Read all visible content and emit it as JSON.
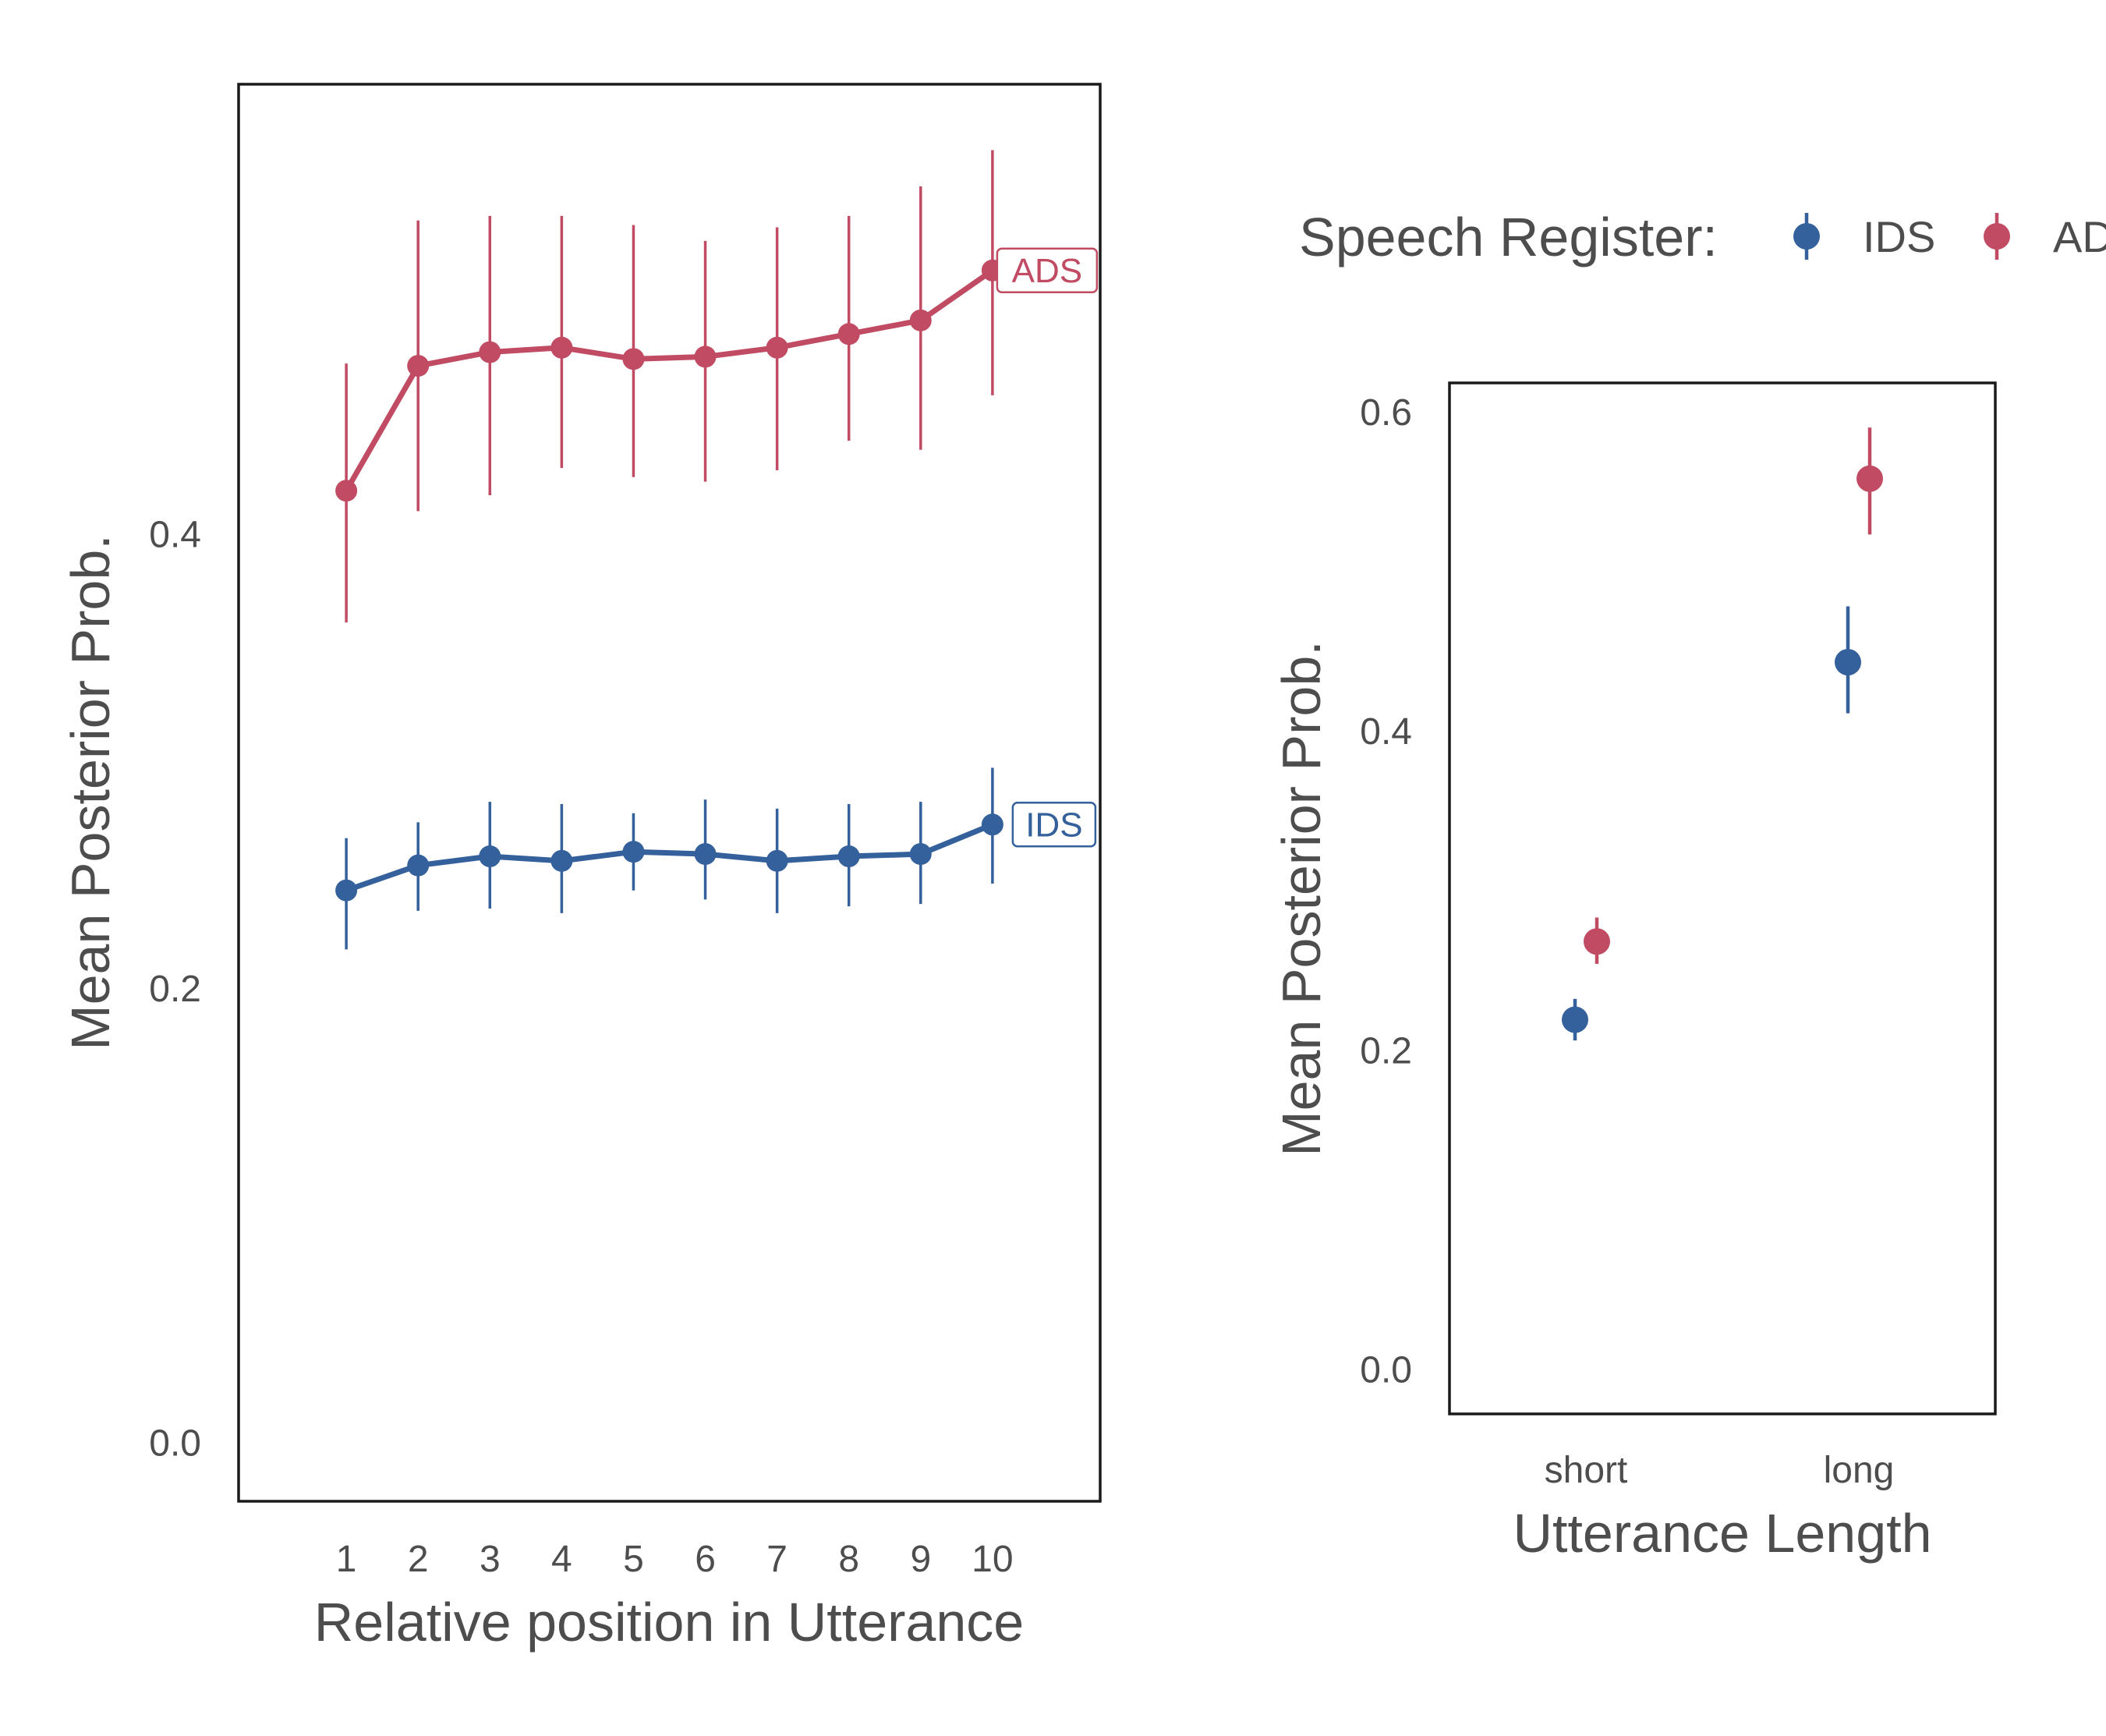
{
  "colors": {
    "IDS": "#34609b",
    "ADS": "#c04b63"
  },
  "legend": {
    "title": "Speech Register:",
    "items": [
      {
        "name": "IDS",
        "label": "IDS",
        "color": "#34609b"
      },
      {
        "name": "ADS",
        "label": "ADS",
        "color": "#c04b63"
      }
    ]
  },
  "chart_data": [
    {
      "type": "line",
      "xlabel": "Relative position in Utterance",
      "ylabel": "Mean Posterior Prob.",
      "xlim": [
        -0.5,
        11.5
      ],
      "ylim": [
        -0.026,
        0.598
      ],
      "x_ticks": [
        1,
        2,
        3,
        4,
        5,
        6,
        7,
        8,
        9,
        10
      ],
      "y_ticks": [
        {
          "value": 0.0,
          "label": "0.0"
        },
        {
          "value": 0.2,
          "label": "0.2"
        },
        {
          "value": 0.4,
          "label": "0.4"
        }
      ],
      "x": [
        1,
        2,
        3,
        4,
        5,
        6,
        7,
        8,
        9,
        10
      ],
      "series": [
        {
          "name": "ADS",
          "label": "ADS",
          "color": "#c04b63",
          "values": [
            0.419,
            0.474,
            0.48,
            0.482,
            0.477,
            0.478,
            0.482,
            0.488,
            0.494,
            0.516
          ],
          "lower": [
            0.361,
            0.41,
            0.417,
            0.429,
            0.425,
            0.423,
            0.428,
            0.441,
            0.437,
            0.461
          ],
          "upper": [
            0.475,
            0.538,
            0.54,
            0.54,
            0.536,
            0.529,
            0.535,
            0.54,
            0.553,
            0.569
          ]
        },
        {
          "name": "IDS",
          "label": "IDS",
          "color": "#34609b",
          "values": [
            0.243,
            0.254,
            0.258,
            0.256,
            0.26,
            0.259,
            0.256,
            0.258,
            0.259,
            0.272
          ],
          "lower": [
            0.217,
            0.234,
            0.235,
            0.233,
            0.243,
            0.239,
            0.233,
            0.236,
            0.237,
            0.246
          ],
          "upper": [
            0.266,
            0.273,
            0.282,
            0.281,
            0.277,
            0.283,
            0.279,
            0.281,
            0.282,
            0.297
          ]
        }
      ]
    },
    {
      "type": "scatter",
      "xlabel": "Utterance Length",
      "ylabel": "Mean Posterior Prob.",
      "categories": [
        "short",
        "long"
      ],
      "xlim": [
        -0.5,
        1.5
      ],
      "ylim": [
        -0.028,
        0.618
      ],
      "y_ticks": [
        {
          "value": 0.0,
          "label": "0.0"
        },
        {
          "value": 0.2,
          "label": "0.2"
        },
        {
          "value": 0.4,
          "label": "0.4"
        },
        {
          "value": 0.6,
          "label": "0.6"
        }
      ],
      "series": [
        {
          "name": "IDS",
          "color": "#34609b",
          "values": [
            0.219,
            0.443
          ],
          "lower": [
            0.206,
            0.411
          ],
          "upper": [
            0.232,
            0.478
          ]
        },
        {
          "name": "ADS",
          "color": "#c04b63",
          "values": [
            0.268,
            0.558
          ],
          "lower": [
            0.254,
            0.523
          ],
          "upper": [
            0.283,
            0.59
          ]
        }
      ]
    }
  ]
}
